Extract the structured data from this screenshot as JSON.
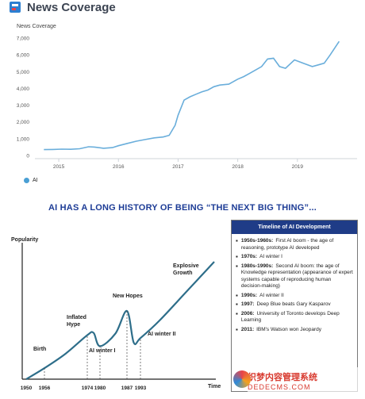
{
  "header": {
    "title": "News Coverage",
    "logo_icon": "news-logo-icon"
  },
  "chart_data": [
    {
      "type": "line",
      "subtitle": "News Coverage",
      "x_ticks": [
        "2015",
        "2016",
        "2017",
        "2018",
        "2019"
      ],
      "y_ticks": [
        "0",
        "1,000",
        "2,000",
        "3,000",
        "4,000",
        "5,000",
        "6,000",
        "7,000"
      ],
      "ylim": [
        0,
        7000
      ],
      "xlim": [
        2014.6,
        2020.0
      ],
      "grid": false,
      "legend_position": "bottom-left",
      "series": [
        {
          "name": "AI",
          "color": "#6aaedb",
          "x": [
            2014.75,
            2014.9,
            2015.05,
            2015.2,
            2015.35,
            2015.5,
            2015.6,
            2015.75,
            2015.9,
            2016.0,
            2016.15,
            2016.3,
            2016.45,
            2016.6,
            2016.75,
            2016.85,
            2016.95,
            2017.0,
            2017.1,
            2017.2,
            2017.3,
            2017.4,
            2017.5,
            2017.6,
            2017.7,
            2017.85,
            2018.0,
            2018.1,
            2018.2,
            2018.3,
            2018.4,
            2018.5,
            2018.6,
            2018.7,
            2018.8,
            2018.95,
            2019.1,
            2019.25,
            2019.35,
            2019.45,
            2019.55,
            2019.7
          ],
          "y": [
            350,
            360,
            380,
            370,
            400,
            520,
            500,
            430,
            470,
            580,
            720,
            850,
            950,
            1050,
            1100,
            1200,
            1800,
            2400,
            3300,
            3500,
            3650,
            3800,
            3900,
            4100,
            4200,
            4250,
            4550,
            4700,
            4900,
            5100,
            5300,
            5750,
            5800,
            5300,
            5200,
            5700,
            5500,
            5300,
            5400,
            5500,
            6000,
            6800
          ]
        }
      ]
    },
    {
      "type": "line",
      "title": "AI HAS A LONG HISTORY OF BEING “THE NEXT BIG THING”...",
      "ylabel": "Popularity",
      "xlabel": "Time",
      "x_ticks": [
        "1950",
        "1956",
        "1974",
        "1980",
        "1987",
        "1993"
      ],
      "annotations": [
        "Birth",
        "Inflated Hype",
        "AI winter I",
        "New Hopes",
        "AI winter II",
        "Explosive Growth"
      ],
      "series": [
        {
          "name": "Popularity",
          "x": [
            1950,
            1956,
            1965,
            1974,
            1977,
            1980,
            1984,
            1987,
            1990,
            1993,
            2000,
            2010,
            2020
          ],
          "y": [
            0,
            1.5,
            3.5,
            6.0,
            6.3,
            4.5,
            6.2,
            9.3,
            5.0,
            5.6,
            8.0,
            12.0,
            16.0
          ]
        }
      ]
    }
  ],
  "legend": {
    "label": "AI"
  },
  "timeline": {
    "heading": "Timeline of AI Development",
    "items": [
      {
        "year": "1950s-1960s:",
        "text": "First AI boom - the age of reasoning, prototype AI developed"
      },
      {
        "year": "1970s:",
        "text": "AI winter I"
      },
      {
        "year": "1980s-1990s:",
        "text": "Second AI boom: the age of Knowledge representation (appearance of expert systems capable of reproducing human decision-making)"
      },
      {
        "year": "1990s:",
        "text": "AI winter II"
      },
      {
        "year": "1997:",
        "text": "Deep Blue beats Gary Kasparov"
      },
      {
        "year": "2006:",
        "text": "University of Toronto develops Deep Learning"
      },
      {
        "year": "2011:",
        "text": "IBM's Watson won Jeopardy"
      }
    ]
  },
  "watermark": {
    "line1": "织梦内容管理系统",
    "line2": "DEDECMS.COM"
  }
}
